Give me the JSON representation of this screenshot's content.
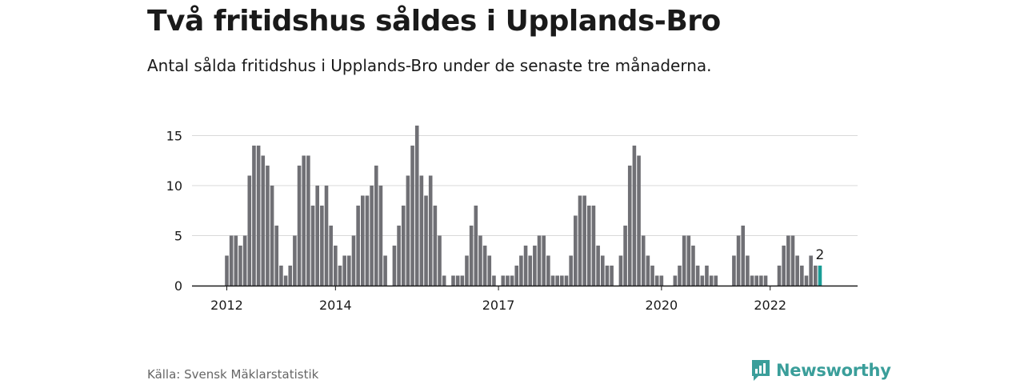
{
  "title": "Två fritidshus såldes i Upplands-Bro",
  "subtitle": "Antal sålda fritidshus i Upplands-Bro under de senaste tre månaderna.",
  "source": "Källa: Svensk Mäklarstatistik",
  "brand": "Newsworthy",
  "colors": {
    "bar": "#707075",
    "highlight": "#1a9d96",
    "brand": "#3a9e9a",
    "grid": "#d9d9d9"
  },
  "chart_data": {
    "type": "bar",
    "x_start": "2012-01",
    "x_end": "2023-02",
    "x_tick_labels": [
      "2012",
      "2014",
      "2017",
      "2020",
      "2022"
    ],
    "y_ticks": [
      "0",
      "5",
      "10",
      "15"
    ],
    "ylim": [
      0,
      17
    ],
    "grid": true,
    "highlight_last": true,
    "last_label": "2",
    "values": [
      3,
      5,
      5,
      4,
      5,
      11,
      14,
      14,
      13,
      12,
      10,
      6,
      2,
      1,
      2,
      5,
      12,
      13,
      13,
      8,
      10,
      8,
      10,
      6,
      4,
      2,
      3,
      3,
      5,
      8,
      9,
      9,
      10,
      12,
      10,
      3,
      0,
      4,
      6,
      8,
      11,
      14,
      16,
      11,
      9,
      11,
      8,
      5,
      1,
      0,
      1,
      1,
      1,
      3,
      6,
      8,
      5,
      4,
      3,
      1,
      0,
      1,
      1,
      1,
      2,
      3,
      4,
      3,
      4,
      5,
      5,
      3,
      1,
      1,
      1,
      1,
      3,
      7,
      9,
      9,
      8,
      8,
      4,
      3,
      2,
      2,
      0,
      3,
      6,
      12,
      14,
      13,
      5,
      3,
      2,
      1,
      1,
      0,
      0,
      1,
      2,
      5,
      5,
      4,
      2,
      1,
      2,
      1,
      1,
      0,
      0,
      0,
      3,
      5,
      6,
      3,
      1,
      1,
      1,
      1,
      0,
      0,
      2,
      4,
      5,
      5,
      3,
      2,
      1,
      3,
      2,
      2
    ]
  }
}
